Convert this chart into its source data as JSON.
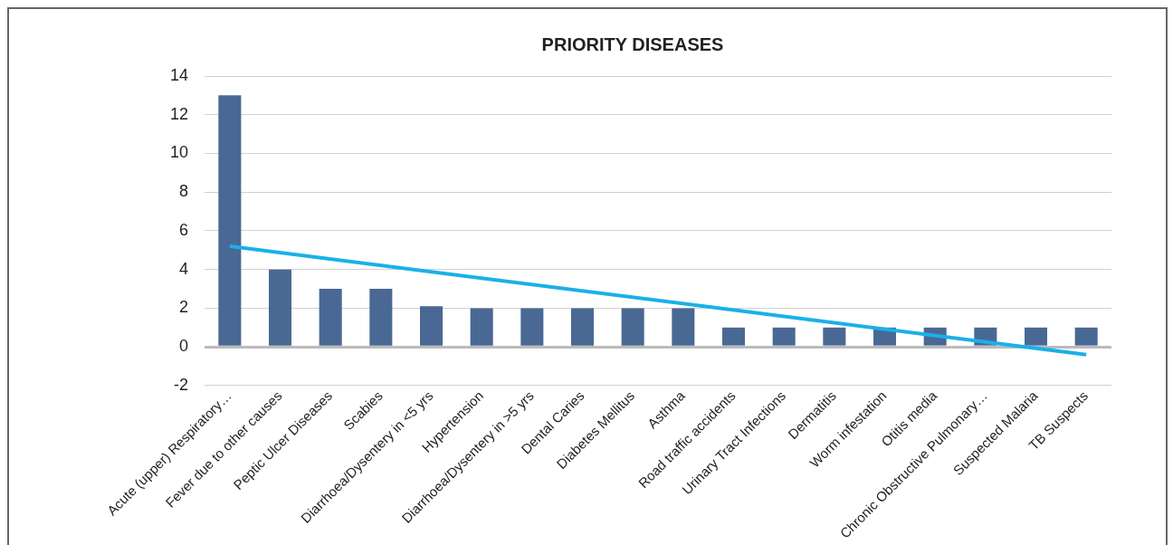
{
  "chart_data": {
    "type": "bar",
    "title": "PRIORITY DISEASES",
    "categories": [
      "Acute (upper) Respiratory…",
      "Fever due to other causes",
      "Peptic Ulcer Diseases",
      "Scabies",
      "Diarrhoea/Dysentery in <5 yrs",
      "Hypertension",
      "Diarrhoea/Dysentery in >5 yrs",
      "Dental Caries",
      "Diabetes Mellitus",
      "Asthma",
      "Road traffic accidents",
      "Urinary Tract Infections",
      "Dermatitis",
      "Worm infestation",
      "Otitis media",
      "Chronic Obstructive Pulmonary…",
      "Suspected Malaria",
      "TB Suspects"
    ],
    "series": [
      {
        "color": "#4a6894",
        "values": [
          13,
          4,
          3,
          3,
          2.1,
          2,
          2,
          2,
          2,
          2,
          1,
          1,
          1,
          1,
          1,
          1,
          1,
          1
        ]
      },
      {
        "type": "line",
        "color": "#1ab0e8",
        "x": [
          "Acute (upper) Respiratory…",
          "TB Suspects"
        ],
        "values": [
          5.2,
          -0.4
        ]
      }
    ],
    "ylim": [
      -2,
      14
    ],
    "yticks": [
      -2,
      0,
      2,
      4,
      6,
      8,
      10,
      12,
      14
    ],
    "grid": "y",
    "legend": false,
    "marker": "none",
    "line_style": "solid"
  }
}
